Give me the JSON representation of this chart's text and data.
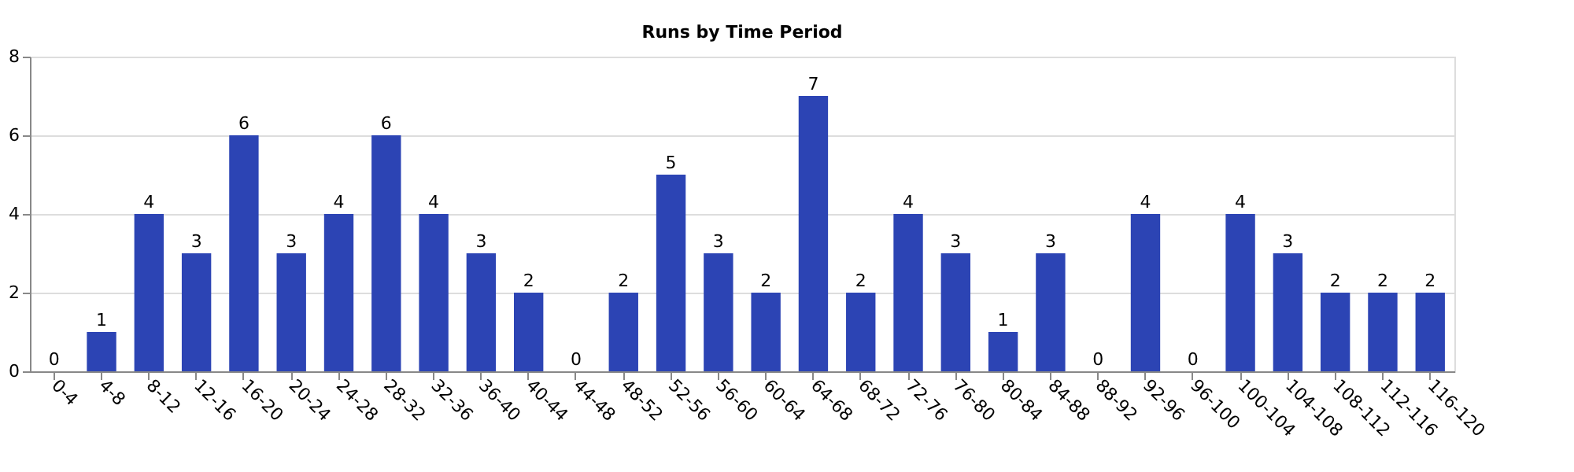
{
  "chart_data": {
    "type": "bar",
    "title": "Runs by Time Period",
    "categories": [
      "0-4",
      "4-8",
      "8-12",
      "12-16",
      "16-20",
      "20-24",
      "24-28",
      "28-32",
      "32-36",
      "36-40",
      "40-44",
      "44-48",
      "48-52",
      "52-56",
      "56-60",
      "60-64",
      "64-68",
      "68-72",
      "72-76",
      "76-80",
      "80-84",
      "84-88",
      "88-92",
      "92-96",
      "96-100",
      "100-104",
      "104-108",
      "108-112",
      "112-116",
      "116-120"
    ],
    "values": [
      0,
      1,
      4,
      3,
      6,
      3,
      4,
      6,
      4,
      3,
      2,
      0,
      2,
      5,
      3,
      2,
      7,
      2,
      4,
      3,
      1,
      3,
      0,
      4,
      0,
      4,
      3,
      2,
      2,
      2
    ],
    "color": "#2c44b4",
    "ylim": [
      0,
      8
    ],
    "yticks": [
      0,
      2,
      4,
      6,
      8
    ],
    "grid": "y",
    "data_labels": true
  }
}
